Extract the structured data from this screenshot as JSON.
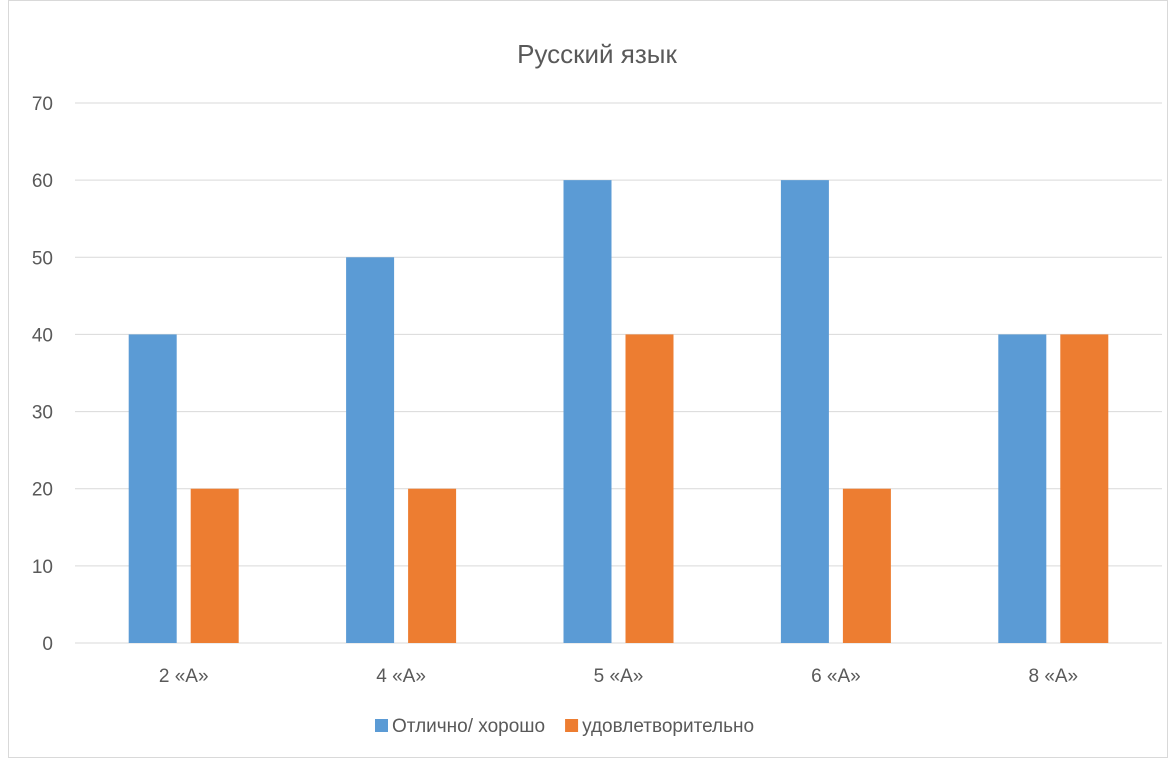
{
  "chart_data": {
    "type": "bar",
    "title": "Русский язык",
    "categories": [
      "2 «А»",
      "4 «А»",
      "5 «А»",
      "6 «А»",
      "8 «А»"
    ],
    "series": [
      {
        "name": "Отлично/ хорошо",
        "values": [
          40,
          50,
          60,
          60,
          40
        ],
        "color": "#5b9bd5"
      },
      {
        "name": "удовлетворительно",
        "values": [
          20,
          20,
          40,
          20,
          40
        ],
        "color": "#ed7d31"
      }
    ],
    "ylim": [
      0,
      70
    ],
    "yticks": [
      0,
      10,
      20,
      30,
      40,
      50,
      60,
      70
    ],
    "xlabel": "",
    "ylabel": "",
    "grid": true,
    "legend_position": "bottom"
  }
}
